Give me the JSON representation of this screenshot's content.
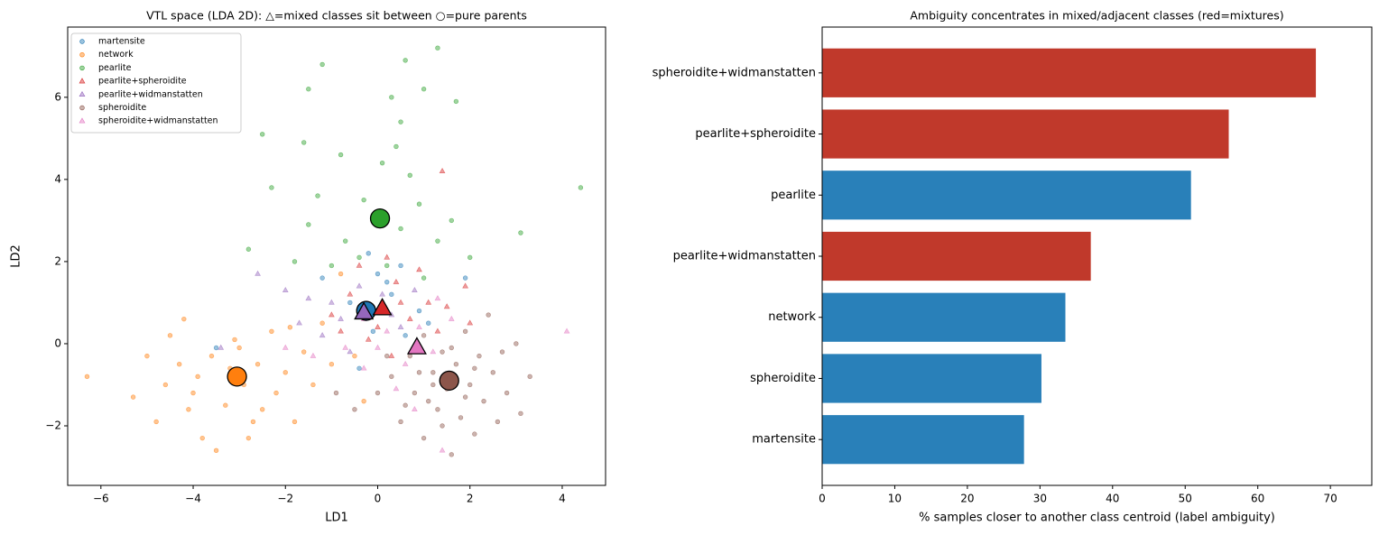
{
  "chart_data": [
    {
      "type": "scatter",
      "title": "VTL space (LDA 2D): △=mixed classes sit between ○=pure parents",
      "x_label": "LD1",
      "y_label": "LD2",
      "xlim": [
        -6.72,
        4.94
      ],
      "ylim": [
        -3.45,
        7.71
      ],
      "xticks": [
        {
          "value": -6,
          "label": "−6"
        },
        {
          "value": -4,
          "label": "−4"
        },
        {
          "value": -2,
          "label": "−2"
        },
        0,
        2,
        4
      ],
      "yticks": [
        {
          "value": -2,
          "label": "−2"
        },
        0,
        2,
        4,
        6
      ],
      "legend": "upper left",
      "series": [
        {
          "name": "martensite",
          "color": "#1f77b4",
          "marker": "circle",
          "x": [
            -3.5,
            0.2,
            0.5,
            1.9,
            -0.1,
            -0.4,
            0.9,
            -0.6,
            0.3,
            -1.2,
            1.1,
            0.0,
            -0.2,
            0.6
          ],
          "y": [
            -0.1,
            1.5,
            1.9,
            1.6,
            0.3,
            -0.6,
            0.8,
            1.0,
            1.2,
            1.6,
            0.5,
            1.7,
            2.2,
            0.2
          ],
          "centroid_x": -0.25,
          "centroid_y": 0.8
        },
        {
          "name": "network",
          "color": "#ff7f0e",
          "marker": "circle",
          "x": [
            -6.3,
            -5.3,
            -5.0,
            -4.8,
            -4.5,
            -4.3,
            -4.2,
            -4.0,
            -3.8,
            -3.6,
            -3.5,
            -3.3,
            -3.1,
            -2.9,
            -2.8,
            -2.6,
            -2.5,
            -2.3,
            -2.2,
            -2.0,
            -1.8,
            -1.6,
            -1.4,
            -1.2,
            -1.0,
            -0.8,
            -0.5,
            -3.9,
            -4.6,
            -3.2,
            -2.7,
            -1.9,
            -0.3,
            -4.1,
            -3.0
          ],
          "y": [
            -0.8,
            -1.3,
            -0.3,
            -1.9,
            0.2,
            -0.5,
            0.6,
            -1.2,
            -2.3,
            -0.3,
            -2.6,
            -1.5,
            0.1,
            -1.0,
            -2.3,
            -0.5,
            -1.6,
            0.3,
            -1.2,
            -0.7,
            -1.9,
            -0.2,
            -1.0,
            0.5,
            -0.5,
            1.7,
            -0.3,
            -0.8,
            -1.0,
            -0.6,
            -1.9,
            0.4,
            -1.4,
            -1.6,
            -0.1
          ],
          "centroid_x": -3.05,
          "centroid_y": -0.8
        },
        {
          "name": "pearlite",
          "color": "#2ca02c",
          "marker": "circle",
          "x": [
            -1.2,
            -1.5,
            -2.5,
            -1.6,
            0.6,
            1.3,
            1.0,
            0.3,
            0.5,
            1.7,
            -0.8,
            -1.3,
            0.1,
            0.7,
            -2.3,
            -0.3,
            0.9,
            3.1,
            4.4,
            -2.8,
            -1.5,
            -0.7,
            0.5,
            1.3,
            -1.0,
            0.2,
            1.0,
            2.0,
            -0.4,
            1.6,
            -1.8,
            0.4
          ],
          "y": [
            6.8,
            6.2,
            5.1,
            4.9,
            6.9,
            7.2,
            6.2,
            6.0,
            5.4,
            5.9,
            4.6,
            3.6,
            4.4,
            4.1,
            3.8,
            3.5,
            3.4,
            2.7,
            3.8,
            2.3,
            2.9,
            2.5,
            2.8,
            2.5,
            1.9,
            1.9,
            1.6,
            2.1,
            2.1,
            3.0,
            2.0,
            4.8
          ],
          "centroid_x": 0.05,
          "centroid_y": 3.05
        },
        {
          "name": "pearlite+spheroidite",
          "color": "#d62728",
          "marker": "triangle",
          "x": [
            1.4,
            0.4,
            -0.6,
            0.7,
            1.1,
            -0.2,
            0.3,
            1.5,
            -1.0,
            0.9,
            1.9,
            -0.4,
            0.0,
            1.3,
            0.5,
            -0.8,
            2.0,
            0.2
          ],
          "y": [
            4.2,
            1.5,
            1.2,
            0.6,
            1.0,
            0.1,
            -0.3,
            0.9,
            0.7,
            1.8,
            1.4,
            1.9,
            0.4,
            0.3,
            1.0,
            0.3,
            0.5,
            2.1
          ],
          "centroid_x": 0.1,
          "centroid_y": 0.85
        },
        {
          "name": "pearlite+widmanstatten",
          "color": "#9467bd",
          "marker": "triangle",
          "x": [
            -2.6,
            -2.0,
            -1.5,
            -0.8,
            -0.4,
            0.1,
            -1.2,
            0.5,
            -0.6,
            -0.2,
            0.8,
            -1.0,
            0.3,
            -3.4,
            -1.7
          ],
          "y": [
            1.7,
            1.3,
            1.1,
            0.6,
            1.4,
            1.2,
            0.2,
            0.4,
            -0.2,
            0.9,
            1.3,
            1.0,
            0.7,
            -0.1,
            0.5
          ],
          "centroid_x": -0.3,
          "centroid_y": 0.75
        },
        {
          "name": "spheroidite",
          "color": "#8c564b",
          "marker": "circle",
          "x": [
            0.0,
            -0.5,
            0.3,
            0.5,
            0.7,
            0.8,
            1.0,
            1.0,
            1.2,
            1.3,
            1.4,
            1.5,
            1.6,
            1.7,
            1.8,
            1.9,
            2.0,
            2.1,
            2.2,
            2.3,
            2.5,
            2.6,
            2.8,
            3.0,
            3.3,
            1.1,
            1.6,
            2.4,
            0.6,
            1.9,
            2.7,
            1.4,
            0.2,
            2.1,
            1.2,
            -0.9,
            3.1,
            0.9
          ],
          "y": [
            -1.2,
            -1.6,
            -0.8,
            -1.9,
            -0.3,
            -1.2,
            -2.3,
            0.2,
            -0.7,
            -1.6,
            -0.2,
            -1.1,
            -2.7,
            -0.5,
            -1.8,
            0.3,
            -1.0,
            -2.2,
            -0.3,
            -1.4,
            -0.7,
            -1.9,
            -1.2,
            0.0,
            -0.8,
            -1.4,
            -0.1,
            0.7,
            -1.5,
            -1.3,
            -0.2,
            -2.0,
            -0.3,
            -0.6,
            -1.0,
            -1.2,
            -1.7,
            -0.7
          ],
          "centroid_x": 1.55,
          "centroid_y": -0.9
        },
        {
          "name": "spheroidite+widmanstatten",
          "color": "#e377c2",
          "marker": "triangle",
          "x": [
            4.1,
            1.4,
            0.2,
            0.6,
            -0.3,
            0.9,
            1.2,
            0.0,
            -0.7,
            0.4,
            1.6,
            -1.4,
            0.8,
            -0.3,
            1.3,
            -2.0
          ],
          "y": [
            0.3,
            -2.6,
            0.3,
            -0.5,
            -0.6,
            0.4,
            -0.2,
            -0.1,
            -0.1,
            -1.1,
            0.6,
            -0.3,
            -1.6,
            0.6,
            1.1,
            -0.1
          ],
          "centroid_x": 0.85,
          "centroid_y": -0.1
        }
      ]
    },
    {
      "type": "bar",
      "orientation": "horizontal",
      "title": "Ambiguity concentrates in mixed/adjacent classes (red=mixtures)",
      "x_label": "% samples closer to another class centroid (label ambiguity)",
      "categories": [
        "martensite",
        "spheroidite",
        "network",
        "pearlite+widmanstatten",
        "pearlite",
        "pearlite+spheroidite",
        "spheroidite+widmanstatten"
      ],
      "values": [
        27.8,
        30.2,
        33.5,
        37,
        50.8,
        56,
        68
      ],
      "colors": [
        "#2980b9",
        "#2980b9",
        "#2980b9",
        "#c0392b",
        "#2980b9",
        "#c0392b",
        "#c0392b"
      ],
      "xlim": [
        0,
        75.7
      ],
      "xticks": [
        0,
        10,
        20,
        30,
        40,
        50,
        60,
        70
      ]
    }
  ]
}
